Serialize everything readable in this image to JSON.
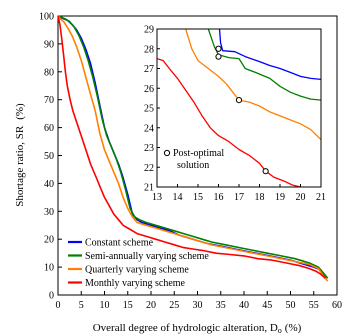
{
  "chart_data": [
    {
      "type": "line",
      "role": "main",
      "xlabel": "Overall degree of hydrologic alteration, D",
      "xlabel_subscript": "o",
      "xlabel_unit": "(%)",
      "ylabel": "Shortage ratio, SR",
      "ylabel_unit": "(%)",
      "xlim": [
        0,
        60
      ],
      "ylim": [
        0,
        100
      ],
      "xticks": [
        "0",
        "5",
        "10",
        "15",
        "20",
        "25",
        "30",
        "35",
        "40",
        "45",
        "50",
        "55",
        "60"
      ],
      "yticks": [
        "0",
        "10",
        "20",
        "30",
        "40",
        "50",
        "60",
        "70",
        "80",
        "90",
        "100"
      ],
      "legend_position": "bottom-left",
      "series": [
        {
          "name": "Constant scheme",
          "color": "#0000ff",
          "points": [
            [
              0,
              100
            ],
            [
              0.6,
              99.5
            ],
            [
              1.2,
              99
            ],
            [
              2.0,
              98.5
            ],
            [
              3.0,
              97
            ],
            [
              4.0,
              95
            ],
            [
              5.0,
              92
            ],
            [
              6.0,
              88
            ],
            [
              7.0,
              83
            ],
            [
              8.0,
              76
            ],
            [
              9.0,
              68
            ],
            [
              10.0,
              60
            ],
            [
              11.0,
              55
            ],
            [
              12.0,
              51
            ],
            [
              13.0,
              47
            ],
            [
              14.0,
              42
            ],
            [
              15.0,
              36
            ],
            [
              16.0,
              29
            ],
            [
              17.0,
              27
            ],
            [
              18.0,
              26
            ],
            [
              20.0,
              25
            ],
            [
              22.0,
              24
            ],
            [
              24.0,
              23
            ],
            [
              26.0,
              21.5
            ],
            [
              28.0,
              20.5
            ],
            [
              30.0,
              19.5
            ],
            [
              32.0,
              18.5
            ],
            [
              35.0,
              17.5
            ],
            [
              38.0,
              16.5
            ],
            [
              41.0,
              15.5
            ],
            [
              44.0,
              14.5
            ],
            [
              47.0,
              13.5
            ],
            [
              50.0,
              12.5
            ],
            [
              53.0,
              11
            ],
            [
              55.0,
              10
            ],
            [
              56.5,
              9
            ],
            [
              57.5,
              6
            ]
          ]
        },
        {
          "name": "Semi-annually varying scheme",
          "color": "#008000",
          "points": [
            [
              0,
              100
            ],
            [
              0.8,
              99.5
            ],
            [
              1.5,
              99
            ],
            [
              2.5,
              98
            ],
            [
              3.5,
              96
            ],
            [
              4.5,
              93
            ],
            [
              5.5,
              89
            ],
            [
              6.5,
              84
            ],
            [
              7.5,
              78
            ],
            [
              8.5,
              71
            ],
            [
              9.5,
              63
            ],
            [
              10.5,
              57
            ],
            [
              11.5,
              53
            ],
            [
              12.5,
              49
            ],
            [
              13.5,
              44
            ],
            [
              14.5,
              38
            ],
            [
              15.5,
              31
            ],
            [
              16.5,
              28
            ],
            [
              17.5,
              27
            ],
            [
              19.0,
              26
            ],
            [
              21.0,
              25
            ],
            [
              23.0,
              24
            ],
            [
              25.0,
              23
            ],
            [
              27.0,
              22
            ],
            [
              29.0,
              21
            ],
            [
              31.0,
              20
            ],
            [
              33.0,
              19
            ],
            [
              36.0,
              18
            ],
            [
              39.0,
              17
            ],
            [
              42.0,
              16
            ],
            [
              45.0,
              15
            ],
            [
              48.0,
              14
            ],
            [
              51.0,
              13
            ],
            [
              54.0,
              11.5
            ],
            [
              56.0,
              10
            ],
            [
              57.0,
              8
            ],
            [
              58.0,
              6
            ]
          ]
        },
        {
          "name": "Quarterly varying scheme",
          "color": "#ff8000",
          "points": [
            [
              0,
              100
            ],
            [
              0.5,
              99
            ],
            [
              1.2,
              98
            ],
            [
              2.0,
              96
            ],
            [
              3.0,
              93
            ],
            [
              4.0,
              89
            ],
            [
              5.0,
              84
            ],
            [
              6.0,
              78
            ],
            [
              7.0,
              72
            ],
            [
              8.0,
              66
            ],
            [
              9.0,
              58
            ],
            [
              10.0,
              52
            ],
            [
              11.0,
              48
            ],
            [
              12.0,
              44
            ],
            [
              13.0,
              40
            ],
            [
              14.0,
              35
            ],
            [
              15.0,
              31
            ],
            [
              16.0,
              28
            ],
            [
              17.0,
              26
            ],
            [
              19.0,
              25
            ],
            [
              21.0,
              24
            ],
            [
              23.0,
              23
            ],
            [
              25.0,
              22
            ],
            [
              27.0,
              21
            ],
            [
              29.0,
              20
            ],
            [
              31.0,
              19
            ],
            [
              33.0,
              18
            ],
            [
              36.0,
              17
            ],
            [
              39.0,
              16
            ],
            [
              42.0,
              15
            ],
            [
              45.0,
              14
            ],
            [
              48.0,
              13
            ],
            [
              51.0,
              12
            ],
            [
              54.0,
              11
            ],
            [
              56.0,
              9.5
            ],
            [
              57.0,
              7
            ],
            [
              58.0,
              5
            ]
          ]
        },
        {
          "name": "Monthly varying scheme",
          "color": "#ff0000",
          "points": [
            [
              0,
              100
            ],
            [
              0.4,
              97
            ],
            [
              0.8,
              92
            ],
            [
              1.2,
              86
            ],
            [
              1.6,
              80
            ],
            [
              2.0,
              75
            ],
            [
              2.6,
              70
            ],
            [
              3.2,
              66
            ],
            [
              4.0,
              62
            ],
            [
              5.0,
              57
            ],
            [
              6.0,
              52
            ],
            [
              7.0,
              47
            ],
            [
              8.0,
              43
            ],
            [
              9.0,
              39
            ],
            [
              10.0,
              35
            ],
            [
              11.0,
              32
            ],
            [
              12.0,
              29
            ],
            [
              13.0,
              27
            ],
            [
              14.0,
              25
            ],
            [
              15.0,
              24
            ],
            [
              17.0,
              22
            ],
            [
              19.0,
              21
            ],
            [
              21.0,
              20
            ],
            [
              23.0,
              19
            ],
            [
              25.0,
              18
            ],
            [
              27.0,
              17
            ],
            [
              29.0,
              16.5
            ],
            [
              31.0,
              16
            ],
            [
              34.0,
              15
            ],
            [
              37.0,
              14.5
            ],
            [
              40.0,
              14
            ],
            [
              43.0,
              13
            ],
            [
              46.0,
              12.5
            ],
            [
              49.0,
              11.5
            ],
            [
              52.0,
              10.5
            ],
            [
              54.0,
              9.5
            ],
            [
              55.5,
              8.5
            ],
            [
              56.5,
              7.5
            ],
            [
              57.5,
              6
            ]
          ]
        }
      ]
    },
    {
      "type": "line",
      "role": "inset",
      "xlim": [
        13,
        21
      ],
      "ylim": [
        21,
        29
      ],
      "xticks": [
        "13",
        "14",
        "15",
        "16",
        "17",
        "18",
        "19",
        "20",
        "21"
      ],
      "yticks": [
        "21",
        "22",
        "23",
        "24",
        "25",
        "26",
        "27",
        "28",
        "29"
      ],
      "annotation": [
        "Post-optimal",
        "solution"
      ],
      "series": [
        {
          "name": "Constant scheme",
          "color": "#0000ff",
          "points": [
            [
              16.05,
              29
            ],
            [
              16.1,
              28.3
            ],
            [
              16.2,
              27.9
            ],
            [
              16.8,
              27.85
            ],
            [
              17.3,
              27.6
            ],
            [
              18.0,
              27.35
            ],
            [
              18.5,
              27.15
            ],
            [
              19.0,
              27.0
            ],
            [
              19.5,
              26.8
            ],
            [
              20.0,
              26.6
            ],
            [
              20.5,
              26.5
            ],
            [
              21.0,
              26.45
            ]
          ],
          "solution": [
            16.0,
            28.0
          ]
        },
        {
          "name": "Semi-annually varying scheme",
          "color": "#008000",
          "points": [
            [
              15.5,
              29
            ],
            [
              15.8,
              28.1
            ],
            [
              16.0,
              27.7
            ],
            [
              16.5,
              27.55
            ],
            [
              17.0,
              27.5
            ],
            [
              17.3,
              27.0
            ],
            [
              17.8,
              26.8
            ],
            [
              18.5,
              26.5
            ],
            [
              19.0,
              26.1
            ],
            [
              19.5,
              25.8
            ],
            [
              20.0,
              25.6
            ],
            [
              20.5,
              25.45
            ],
            [
              21.0,
              25.4
            ]
          ],
          "solution": [
            16.0,
            27.6
          ]
        },
        {
          "name": "Quarterly varying scheme",
          "color": "#ff8000",
          "points": [
            [
              14.4,
              29
            ],
            [
              14.7,
              28.0
            ],
            [
              15.0,
              27.4
            ],
            [
              15.5,
              27.0
            ],
            [
              16.0,
              26.6
            ],
            [
              16.4,
              26.2
            ],
            [
              16.7,
              25.8
            ],
            [
              17.0,
              25.4
            ],
            [
              17.5,
              25.3
            ],
            [
              18.0,
              25.1
            ],
            [
              18.5,
              24.8
            ],
            [
              19.0,
              24.6
            ],
            [
              19.5,
              24.4
            ],
            [
              20.0,
              24.2
            ],
            [
              20.5,
              23.9
            ],
            [
              21.0,
              23.4
            ]
          ],
          "solution": [
            17.0,
            25.4
          ]
        },
        {
          "name": "Monthly varying scheme",
          "color": "#ff0000",
          "points": [
            [
              13.0,
              27.5
            ],
            [
              13.3,
              27.4
            ],
            [
              13.6,
              27.0
            ],
            [
              14.0,
              26.5
            ],
            [
              14.4,
              25.9
            ],
            [
              14.8,
              25.3
            ],
            [
              15.2,
              24.6
            ],
            [
              15.6,
              24.0
            ],
            [
              16.0,
              23.6
            ],
            [
              16.5,
              23.3
            ],
            [
              17.0,
              22.9
            ],
            [
              17.5,
              22.6
            ],
            [
              18.0,
              22.2
            ],
            [
              18.3,
              21.8
            ],
            [
              18.7,
              21.5
            ],
            [
              19.2,
              21.3
            ],
            [
              19.6,
              21.1
            ],
            [
              20.0,
              21.0
            ]
          ],
          "solution": [
            18.3,
            21.8
          ]
        }
      ]
    }
  ]
}
